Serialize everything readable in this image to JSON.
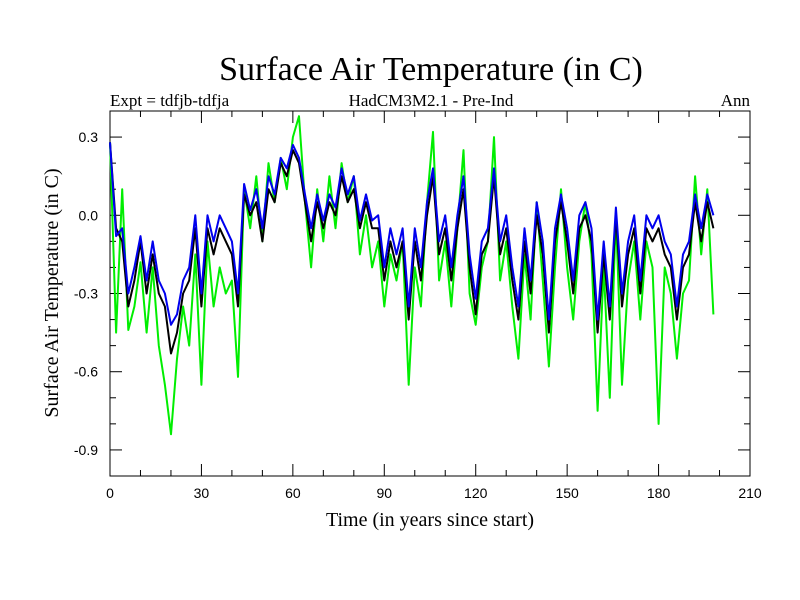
{
  "chart_data": {
    "type": "line",
    "title": "Surface Air Temperature (in C)",
    "subtitle_left": "Expt = tdfjb-tdfja",
    "subtitle_center": "HadCM3M2.1 - Pre-Ind",
    "subtitle_right": "Ann",
    "xlabel": "Time (in years since start)",
    "ylabel": "Surface Air Temperature (in C)",
    "xlim": [
      0,
      210
    ],
    "ylim": [
      -1.0,
      0.4
    ],
    "xticks": [
      0,
      30,
      60,
      90,
      120,
      150,
      180,
      210
    ],
    "xtick_labels": [
      "0",
      "30",
      "60",
      "90",
      "120",
      "150",
      "180",
      "210"
    ],
    "yticks": [
      0.3,
      0.0,
      -0.3,
      -0.6,
      -0.9
    ],
    "ytick_labels": [
      "0.3",
      "0.0",
      "-0.3",
      "-0.6",
      "-0.9"
    ],
    "grid": false,
    "series": [
      {
        "name": "green",
        "color": "#00ee00",
        "x": [
          0,
          2,
          4,
          6,
          8,
          10,
          12,
          14,
          16,
          18,
          20,
          22,
          24,
          26,
          28,
          30,
          32,
          34,
          36,
          38,
          40,
          42,
          44,
          46,
          48,
          50,
          52,
          54,
          56,
          58,
          60,
          62,
          64,
          66,
          68,
          70,
          72,
          74,
          76,
          78,
          80,
          82,
          84,
          86,
          88,
          90,
          92,
          94,
          96,
          98,
          100,
          102,
          104,
          106,
          108,
          110,
          112,
          114,
          116,
          118,
          120,
          122,
          124,
          126,
          128,
          130,
          132,
          134,
          136,
          138,
          140,
          142,
          144,
          146,
          148,
          150,
          152,
          154,
          156,
          158,
          160,
          162,
          164,
          166,
          168,
          170,
          172,
          174,
          176,
          178,
          180,
          182,
          184,
          186,
          188,
          190,
          192,
          194,
          196,
          198
        ],
        "values": [
          0.28,
          -0.45,
          0.1,
          -0.44,
          -0.35,
          -0.18,
          -0.45,
          -0.2,
          -0.5,
          -0.65,
          -0.84,
          -0.55,
          -0.35,
          -0.5,
          -0.15,
          -0.65,
          -0.1,
          -0.35,
          -0.2,
          -0.3,
          -0.25,
          -0.62,
          0.1,
          -0.05,
          0.15,
          -0.1,
          0.2,
          0.05,
          0.22,
          0.1,
          0.3,
          0.38,
          0.05,
          -0.2,
          0.1,
          -0.1,
          0.15,
          -0.05,
          0.2,
          0.05,
          0.15,
          -0.15,
          0.0,
          -0.2,
          -0.1,
          -0.35,
          -0.15,
          -0.25,
          -0.1,
          -0.65,
          -0.2,
          -0.35,
          0.05,
          0.32,
          -0.25,
          -0.1,
          -0.35,
          -0.05,
          0.25,
          -0.3,
          -0.42,
          -0.2,
          -0.1,
          0.3,
          -0.25,
          -0.1,
          -0.35,
          -0.55,
          -0.15,
          -0.4,
          0.05,
          -0.25,
          -0.58,
          -0.2,
          0.1,
          -0.2,
          -0.4,
          -0.1,
          0.05,
          -0.15,
          -0.75,
          -0.2,
          -0.7,
          0.0,
          -0.65,
          -0.25,
          -0.1,
          -0.4,
          -0.1,
          -0.2,
          -0.8,
          -0.2,
          -0.3,
          -0.55,
          -0.3,
          -0.25,
          0.15,
          -0.15,
          0.1,
          -0.38
        ]
      },
      {
        "name": "black",
        "color": "#000000",
        "x": [
          0,
          2,
          4,
          6,
          8,
          10,
          12,
          14,
          16,
          18,
          20,
          22,
          24,
          26,
          28,
          30,
          32,
          34,
          36,
          38,
          40,
          42,
          44,
          46,
          48,
          50,
          52,
          54,
          56,
          58,
          60,
          62,
          64,
          66,
          68,
          70,
          72,
          74,
          76,
          78,
          80,
          82,
          84,
          86,
          88,
          90,
          92,
          94,
          96,
          98,
          100,
          102,
          104,
          106,
          108,
          110,
          112,
          114,
          116,
          118,
          120,
          122,
          124,
          126,
          128,
          130,
          132,
          134,
          136,
          138,
          140,
          142,
          144,
          146,
          148,
          150,
          152,
          154,
          156,
          158,
          160,
          162,
          164,
          166,
          168,
          170,
          172,
          174,
          176,
          178,
          180,
          182,
          184,
          186,
          188,
          190,
          192,
          194,
          196,
          198
        ],
        "values": [
          0.28,
          -0.05,
          -0.1,
          -0.35,
          -0.25,
          -0.1,
          -0.3,
          -0.15,
          -0.3,
          -0.35,
          -0.53,
          -0.45,
          -0.3,
          -0.25,
          -0.05,
          -0.35,
          -0.05,
          -0.15,
          -0.05,
          -0.1,
          -0.15,
          -0.35,
          0.08,
          0.0,
          0.05,
          -0.1,
          0.1,
          0.05,
          0.2,
          0.15,
          0.25,
          0.2,
          0.05,
          -0.1,
          0.05,
          -0.05,
          0.05,
          0.0,
          0.15,
          0.05,
          0.1,
          -0.05,
          0.05,
          -0.05,
          -0.05,
          -0.25,
          -0.1,
          -0.2,
          -0.1,
          -0.4,
          -0.1,
          -0.25,
          0.0,
          0.15,
          -0.15,
          -0.05,
          -0.25,
          -0.05,
          0.1,
          -0.2,
          -0.38,
          -0.15,
          -0.1,
          0.15,
          -0.15,
          -0.05,
          -0.25,
          -0.4,
          -0.1,
          -0.3,
          0.0,
          -0.15,
          -0.45,
          -0.1,
          0.05,
          -0.1,
          -0.3,
          -0.05,
          0.0,
          -0.1,
          -0.45,
          -0.15,
          -0.4,
          0.0,
          -0.35,
          -0.15,
          -0.05,
          -0.3,
          -0.05,
          -0.1,
          -0.05,
          -0.15,
          -0.2,
          -0.4,
          -0.2,
          -0.15,
          0.05,
          -0.1,
          0.05,
          -0.05
        ]
      },
      {
        "name": "blue",
        "color": "#0000ee",
        "x": [
          0,
          2,
          4,
          6,
          8,
          10,
          12,
          14,
          16,
          18,
          20,
          22,
          24,
          26,
          28,
          30,
          32,
          34,
          36,
          38,
          40,
          42,
          44,
          46,
          48,
          50,
          52,
          54,
          56,
          58,
          60,
          62,
          64,
          66,
          68,
          70,
          72,
          74,
          76,
          78,
          80,
          82,
          84,
          86,
          88,
          90,
          92,
          94,
          96,
          98,
          100,
          102,
          104,
          106,
          108,
          110,
          112,
          114,
          116,
          118,
          120,
          122,
          124,
          126,
          128,
          130,
          132,
          134,
          136,
          138,
          140,
          142,
          144,
          146,
          148,
          150,
          152,
          154,
          156,
          158,
          160,
          162,
          164,
          166,
          168,
          170,
          172,
          174,
          176,
          178,
          180,
          182,
          184,
          186,
          188,
          190,
          192,
          194,
          196,
          198
        ],
        "values": [
          0.28,
          -0.08,
          -0.05,
          -0.3,
          -0.2,
          -0.08,
          -0.25,
          -0.1,
          -0.25,
          -0.3,
          -0.42,
          -0.38,
          -0.25,
          -0.2,
          0.0,
          -0.3,
          0.0,
          -0.1,
          0.0,
          -0.05,
          -0.1,
          -0.3,
          0.12,
          0.02,
          0.1,
          -0.05,
          0.15,
          0.08,
          0.22,
          0.18,
          0.27,
          0.22,
          0.08,
          -0.05,
          0.08,
          -0.02,
          0.08,
          0.03,
          0.18,
          0.08,
          0.15,
          -0.02,
          0.08,
          -0.02,
          0.0,
          -0.2,
          -0.05,
          -0.15,
          -0.05,
          -0.35,
          -0.05,
          -0.2,
          0.05,
          0.18,
          -0.1,
          0.0,
          -0.2,
          0.0,
          0.15,
          -0.15,
          -0.32,
          -0.1,
          -0.05,
          0.18,
          -0.1,
          0.0,
          -0.2,
          -0.35,
          -0.05,
          -0.25,
          0.05,
          -0.1,
          -0.4,
          -0.05,
          0.08,
          -0.05,
          -0.25,
          0.0,
          0.05,
          -0.05,
          -0.4,
          -0.1,
          -0.35,
          0.03,
          -0.3,
          -0.1,
          0.0,
          -0.25,
          0.0,
          -0.05,
          0.0,
          -0.1,
          -0.15,
          -0.35,
          -0.15,
          -0.1,
          0.08,
          -0.05,
          0.08,
          0.0
        ]
      }
    ]
  }
}
